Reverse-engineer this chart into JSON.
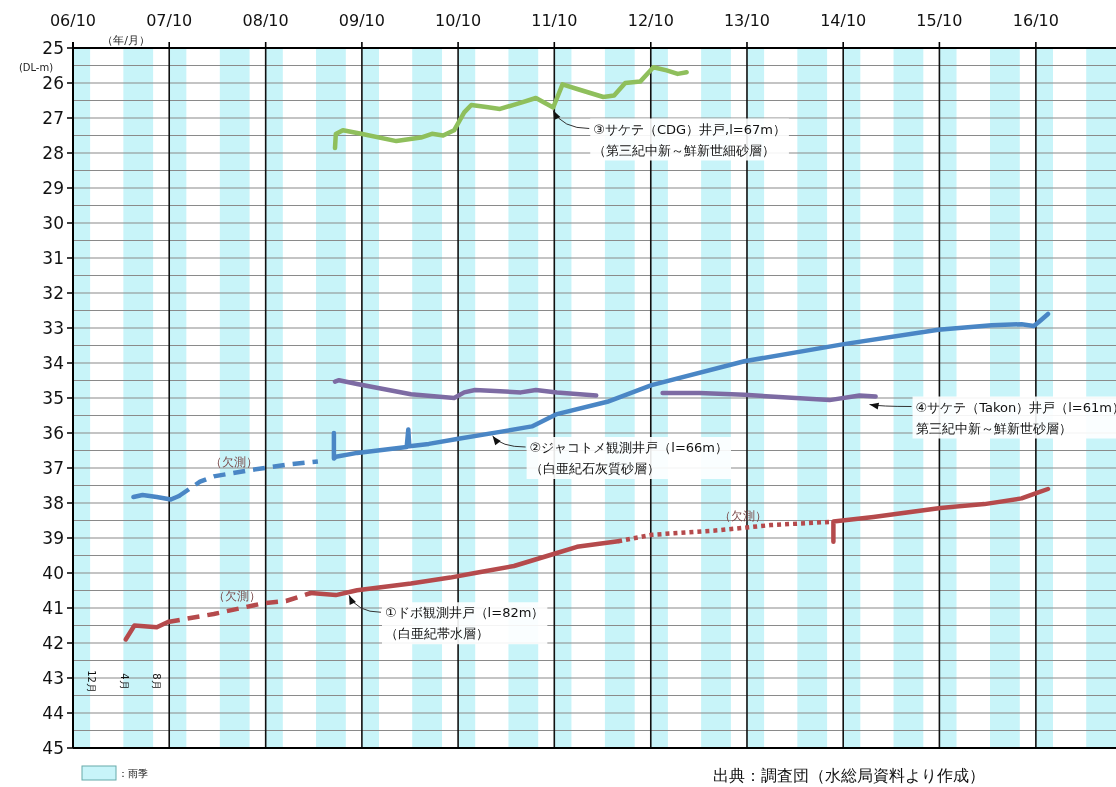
{
  "chart_data": {
    "type": "line",
    "xlabel": "（年/月）",
    "ylabel": "(DL-m)",
    "xlim": [
      "2006-10",
      "2017-08"
    ],
    "xticks": [
      {
        "value": "2006-10",
        "label": "06/10"
      },
      {
        "value": "2007-10",
        "label": "07/10"
      },
      {
        "value": "2008-10",
        "label": "08/10"
      },
      {
        "value": "2009-10",
        "label": "09/10"
      },
      {
        "value": "2010-10",
        "label": "10/10"
      },
      {
        "value": "2011-10",
        "label": "11/10"
      },
      {
        "value": "2012-10",
        "label": "12/10"
      },
      {
        "value": "2013-10",
        "label": "13/10"
      },
      {
        "value": "2014-10",
        "label": "14/10"
      },
      {
        "value": "2015-10",
        "label": "15/10"
      },
      {
        "value": "2016-10",
        "label": "16/10"
      }
    ],
    "ylim": [
      45,
      25
    ],
    "yticks": [
      25,
      {
        "value": 25.5,
        "label": null
      },
      26,
      {
        "value": 26.5,
        "label": null
      },
      27,
      {
        "value": 27.5,
        "label": null
      },
      28,
      {
        "value": 28.5,
        "label": null
      },
      29,
      {
        "value": 29.5,
        "label": null
      },
      30,
      {
        "value": 30.5,
        "label": null
      },
      31,
      {
        "value": 31.5,
        "label": null
      },
      32,
      {
        "value": 32.5,
        "label": null
      },
      33,
      {
        "value": 33.5,
        "label": null
      },
      34,
      {
        "value": 34.5,
        "label": null
      },
      35,
      {
        "value": 35.5,
        "label": null
      },
      36,
      {
        "value": 36.5,
        "label": null
      },
      37,
      {
        "value": 37.5,
        "label": null
      },
      38,
      {
        "value": 38.5,
        "label": null
      },
      39,
      {
        "value": 39.5,
        "label": null
      },
      40,
      {
        "value": 40.5,
        "label": null
      },
      41,
      {
        "value": 41.5,
        "label": null
      },
      42,
      {
        "value": 42.5,
        "label": null
      },
      43,
      {
        "value": 43.5,
        "label": null
      },
      44,
      {
        "value": 44.5,
        "label": null
      },
      45
    ],
    "grid": true,
    "legend": "bottom left",
    "marker": "none",
    "bands": [
      {
        "axis": "x",
        "from": "2006-10-01",
        "to": "2006-12-05",
        "label": "：雨季",
        "color": "#c8f4f9"
      },
      {
        "axis": "x",
        "from": "2007-04-10",
        "to": "2007-08-01",
        "color": "#c8f4f9"
      },
      {
        "axis": "x",
        "from": "2007-10-01",
        "to": "2007-12-05",
        "color": "#c8f4f9"
      },
      {
        "axis": "x",
        "from": "2008-04-10",
        "to": "2008-08-01",
        "color": "#c8f4f9"
      },
      {
        "axis": "x",
        "from": "2008-10-01",
        "to": "2008-12-05",
        "color": "#c8f4f9"
      },
      {
        "axis": "x",
        "from": "2009-04-10",
        "to": "2009-08-01",
        "color": "#c8f4f9"
      },
      {
        "axis": "x",
        "from": "2009-10-01",
        "to": "2009-12-05",
        "color": "#c8f4f9"
      },
      {
        "axis": "x",
        "from": "2010-04-10",
        "to": "2010-08-01",
        "color": "#c8f4f9"
      },
      {
        "axis": "x",
        "from": "2010-10-01",
        "to": "2010-12-05",
        "color": "#c8f4f9"
      },
      {
        "axis": "x",
        "from": "2011-04-10",
        "to": "2011-08-01",
        "color": "#c8f4f9"
      },
      {
        "axis": "x",
        "from": "2011-10-01",
        "to": "2011-12-05",
        "color": "#c8f4f9"
      },
      {
        "axis": "x",
        "from": "2012-04-10",
        "to": "2012-08-01",
        "color": "#c8f4f9"
      },
      {
        "axis": "x",
        "from": "2012-10-01",
        "to": "2012-12-05",
        "color": "#c8f4f9"
      },
      {
        "axis": "x",
        "from": "2013-04-10",
        "to": "2013-08-01",
        "color": "#c8f4f9"
      },
      {
        "axis": "x",
        "from": "2013-10-01",
        "to": "2013-12-05",
        "color": "#c8f4f9"
      },
      {
        "axis": "x",
        "from": "2014-04-10",
        "to": "2014-08-01",
        "color": "#c8f4f9"
      },
      {
        "axis": "x",
        "from": "2014-10-01",
        "to": "2014-12-05",
        "color": "#c8f4f9"
      },
      {
        "axis": "x",
        "from": "2015-04-10",
        "to": "2015-08-01",
        "color": "#c8f4f9"
      },
      {
        "axis": "x",
        "from": "2015-10-01",
        "to": "2015-12-05",
        "color": "#c8f4f9"
      },
      {
        "axis": "x",
        "from": "2016-04-10",
        "to": "2016-08-01",
        "color": "#c8f4f9"
      },
      {
        "axis": "x",
        "from": "2016-10-01",
        "to": "2016-12-05",
        "color": "#c8f4f9"
      },
      {
        "axis": "x",
        "from": "2017-04-10",
        "to": "2017-08-01",
        "color": "#c8f4f9"
      }
    ],
    "series": [
      {
        "color": "#b54a4c",
        "line_style": "solid",
        "x": [
          "2007-04-19",
          "2007-05-22",
          "2007-08-15",
          "2007-09-26"
        ],
        "values": [
          41.9,
          41.5,
          41.55,
          41.4
        ]
      },
      {
        "color": "#b54a4c",
        "line_style": "dashed",
        "x": [
          "2007-09-26",
          "2008-03-18",
          "2008-09-25",
          "2008-12-17",
          "2009-03-21"
        ],
        "values": [
          41.4,
          41.17,
          40.86,
          40.8,
          40.57
        ]
      },
      {
        "color": "#b54a4c",
        "line_style": "solid",
        "x": [
          "2009-03-21",
          "2009-06-24",
          "2009-09-13",
          "2010-04-05",
          "2010-09-01",
          "2010-12-04",
          "2011-05-01",
          "2011-10-11",
          "2011-12-26",
          "2012-05-30"
        ],
        "values": [
          40.57,
          40.63,
          40.49,
          40.3,
          40.13,
          40.0,
          39.8,
          39.43,
          39.25,
          39.09
        ]
      },
      {
        "color": "#b54a4c",
        "line_style": "dotted",
        "x": [
          "2012-05-30",
          "2012-10-04",
          "2013-06-14",
          "2013-12-29",
          "2014-08-10"
        ],
        "values": [
          39.09,
          38.91,
          38.78,
          38.63,
          38.54
        ]
      },
      {
        "color": "#b54a4c",
        "line_style": "solid",
        "x": [
          "2014-08-25",
          "2014-08-25",
          "2015-01-24",
          "2015-10-05",
          "2016-03-20",
          "2016-08-08",
          "2016-10-05",
          "2016-11-16"
        ],
        "values": [
          39.11,
          38.53,
          38.4,
          38.14,
          38.03,
          37.87,
          37.71,
          37.6
        ]
      },
      {
        "color": "#4a86c5",
        "line_style": "solid",
        "x": [
          "2007-05-18",
          "2007-06-22",
          "2007-08-15",
          "2007-10-07",
          "2007-11-07"
        ],
        "values": [
          37.83,
          37.77,
          37.83,
          37.9,
          37.8
        ]
      },
      {
        "color": "#4a86c5",
        "line_style": "dashed",
        "x": [
          "2007-11-07",
          "2008-01-26",
          "2008-03-18",
          "2008-08-03",
          "2008-12-17",
          "2009-04-17"
        ],
        "values": [
          37.8,
          37.39,
          37.24,
          37.06,
          36.91,
          36.81
        ]
      },
      {
        "color": "#4a86c5",
        "line_style": "solid",
        "x": [
          "2009-06-17",
          "2009-06-17",
          "2009-06-24",
          "2009-09-13",
          "2010-03-20",
          "2010-03-26",
          "2010-03-30",
          "2010-06-12",
          "2010-09-27",
          "2011-03-09",
          "2011-07-08",
          "2011-10-11",
          "2012-04-19",
          "2012-10-04",
          "2013-09-21",
          "2014-09-28",
          "2015-09-27",
          "2016-04-16",
          "2016-08-08",
          "2016-09-23",
          "2016-10-12",
          "2016-11-16"
        ],
        "values": [
          36.0,
          36.73,
          36.68,
          36.57,
          36.4,
          35.9,
          36.38,
          36.31,
          36.17,
          35.97,
          35.81,
          35.46,
          35.11,
          34.63,
          33.95,
          33.47,
          33.05,
          32.92,
          32.89,
          32.94,
          32.83,
          32.6
        ]
      },
      {
        "color": "#8fbf5c",
        "line_style": "solid",
        "x": [
          "2009-06-21",
          "2009-06-24",
          "2009-07-21",
          "2009-09-28",
          "2010-02-09",
          "2010-05-13",
          "2010-06-24",
          "2010-08-05",
          "2010-09-16",
          "2010-10-24",
          "2010-11-20",
          "2011-01-16",
          "2011-03-09",
          "2011-05-16",
          "2011-07-23",
          "2011-09-27",
          "2011-11-01",
          "2011-12-27",
          "2012-04-04",
          "2012-05-15",
          "2012-06-26",
          "2012-08-22",
          "2012-10-11",
          "2012-11-30",
          "2013-01-11",
          "2013-02-14"
        ],
        "values": [
          27.86,
          27.46,
          27.35,
          27.45,
          27.66,
          27.56,
          27.45,
          27.5,
          27.35,
          26.84,
          26.63,
          26.69,
          26.74,
          26.59,
          26.43,
          26.7,
          26.04,
          26.17,
          26.4,
          26.36,
          26.0,
          25.96,
          25.55,
          25.64,
          25.74,
          25.69
        ]
      },
      {
        "color": "#7d6ba3",
        "line_style": "solid",
        "x": [
          "2009-06-21",
          "2009-07-06",
          "2009-09-13",
          "2010-04-05",
          "2010-09-16",
          "2010-10-24",
          "2010-12-04",
          "2011-05-27",
          "2011-07-23",
          "2011-10-11",
          "2012-03-08"
        ],
        "values": [
          34.53,
          34.49,
          34.6,
          34.89,
          35.0,
          34.84,
          34.77,
          34.84,
          34.77,
          34.84,
          34.93
        ]
      },
      {
        "color": "#7d6ba3",
        "line_style": "solid",
        "x": [
          "2012-11-15",
          "2013-04-03",
          "2013-09-21",
          "2014-08-10",
          "2014-12-02",
          "2015-02-01"
        ],
        "values": [
          34.86,
          34.86,
          34.91,
          35.06,
          34.93,
          34.96
        ]
      }
    ],
    "annotations": [
      {
        "text": "③サケテ（CDG）井戸,l=67m）",
        "x": "2011-09-27",
        "y": 26.7
      },
      "（第三紀中新～鮮新世細砂層）",
      {
        "text": "②ジャコトメ観測井戸（l=66m）",
        "x": "2011-02-09",
        "y": 36.0
      },
      "（白亜紀石灰質砂層）",
      {
        "text": "①ドボ観測井戸（l=82m）",
        "x": "2009-08-13",
        "y": 40.55
      },
      "（白亜紀帯水層）",
      {
        "text": "④サケテ（Takon）井戸（l=61m）",
        "x": "2015-01-09",
        "y": 35.1
      },
      "第三紀中新～鮮新世砂層）",
      {
        "text": "（欠測）",
        "x": "2008-06-03",
        "y": 37.17
      },
      {
        "text": "（欠測）",
        "x": "2008-06-15",
        "y": 41.0
      },
      {
        "text": "（欠測）",
        "x": "2013-09-14",
        "y": 38.7
      },
      {
        "text": "12月",
        "x": "2006-12-11",
        "y": 43.1
      },
      {
        "text": "4月",
        "x": "2007-04-15",
        "y": 43.1
      },
      {
        "text": "8月",
        "x": "2007-08-15",
        "y": 43.1
      },
      "出典：調査団（水総局資料より作成）"
    ]
  }
}
